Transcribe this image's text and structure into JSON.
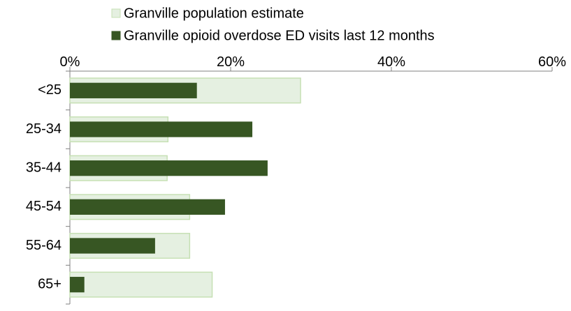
{
  "chart_data": {
    "type": "bar",
    "orientation": "horizontal",
    "categories": [
      "<25",
      "25-34",
      "35-44",
      "45-54",
      "55-64",
      "65+"
    ],
    "series": [
      {
        "name": "Granville population estimate",
        "values": [
          28.7,
          12.2,
          12.1,
          14.9,
          14.9,
          17.7
        ],
        "color": "#e5f0e1",
        "stroke": "#c6e0b4"
      },
      {
        "name": "Granville opioid overdose ED visits last 12 months",
        "values": [
          15.8,
          22.7,
          24.6,
          19.3,
          10.6,
          1.8
        ],
        "color": "#375623"
      }
    ],
    "xlim": [
      0,
      60
    ],
    "xticks": [
      "0%",
      "20%",
      "40%",
      "60%"
    ],
    "xtick_values": [
      0,
      20,
      40,
      60
    ],
    "axis_position": "top",
    "legend_position": "top",
    "grid": false,
    "title": "",
    "xlabel": "",
    "ylabel": ""
  }
}
